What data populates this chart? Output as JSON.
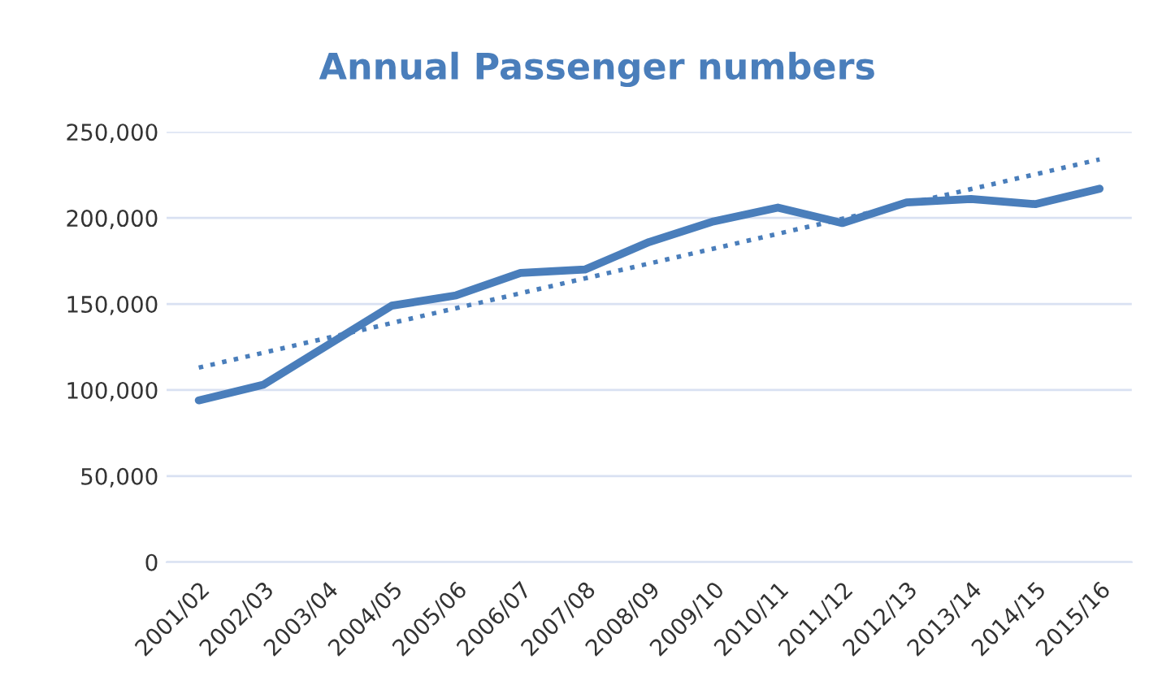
{
  "chart_data": {
    "type": "line",
    "title": "Annual Passenger numbers",
    "categories": [
      "2001/02",
      "2002/03",
      "2003/04",
      "2004/05",
      "2005/06",
      "2006/07",
      "2007/08",
      "2008/09",
      "2009/10",
      "2010/11",
      "2011/12",
      "2012/13",
      "2013/14",
      "2014/15",
      "2015/16"
    ],
    "series": [
      {
        "color": "#4a7ebb",
        "values": [
          94000,
          103000,
          126000,
          149000,
          155000,
          168000,
          170000,
          186000,
          198000,
          206000,
          197000,
          209000,
          211000,
          208000,
          217000
        ]
      },
      {
        "type": "line",
        "color": "#4a7ebb",
        "line_style": "dotted",
        "x": [
          "2001/02",
          "2015/16"
        ],
        "values": [
          113000,
          234000
        ]
      }
    ],
    "ylim": [
      0,
      250000
    ],
    "yticks": [
      {
        "value": 0,
        "label": "0"
      },
      {
        "value": 50000,
        "label": "50,000"
      },
      {
        "value": 100000,
        "label": "100,000"
      },
      {
        "value": 150000,
        "label": "150,000"
      },
      {
        "value": 200000,
        "label": "200,000"
      },
      {
        "value": 250000,
        "label": "250,000"
      }
    ],
    "grid": "y",
    "legend": false
  }
}
